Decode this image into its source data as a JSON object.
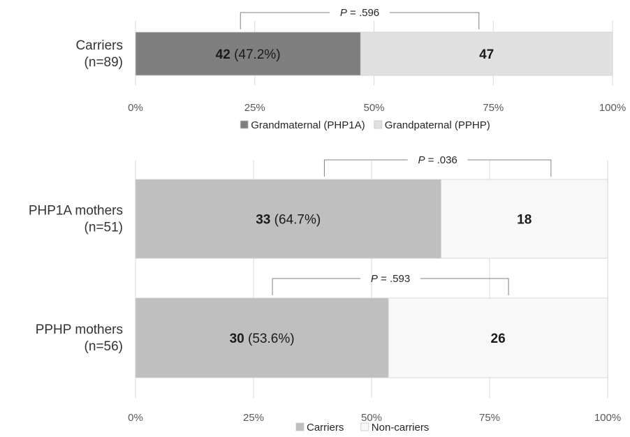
{
  "chart_data": [
    {
      "type": "bar",
      "orientation": "horizontal",
      "stacked": true,
      "percent_axis": true,
      "categories": [
        "Carriers\n(n=89)"
      ],
      "series": [
        {
          "name": "Grandmaternal (PHP1A)",
          "values": [
            42
          ],
          "percent": [
            47.2
          ],
          "color": "#7f7f7f"
        },
        {
          "name": "Grandpaternal (PPHP)",
          "values": [
            47
          ],
          "color": "#e0e0e0"
        }
      ],
      "data_labels": [
        {
          "category": 0,
          "series": 0,
          "number": "42",
          "pct": " (47.2%)"
        },
        {
          "category": 0,
          "series": 1,
          "number": "47",
          "pct": ""
        }
      ],
      "x_ticks": [
        "0%",
        "25%",
        "50%",
        "75%",
        "100%"
      ],
      "xlim": [
        0,
        100
      ],
      "grid": true,
      "legend_placement": "bottom",
      "annotations": [
        {
          "category": 0,
          "from_pct": 22,
          "to_pct": 72,
          "italic": "P",
          "text": " = .596"
        }
      ]
    },
    {
      "type": "bar",
      "orientation": "horizontal",
      "stacked": true,
      "percent_axis": true,
      "categories": [
        "PHP1A mothers\n(n=51)",
        "PPHP mothers\n(n=56)"
      ],
      "series": [
        {
          "name": "Carriers",
          "values": [
            33,
            30
          ],
          "percent": [
            64.7,
            53.6
          ],
          "color": "#bfbfbf"
        },
        {
          "name": "Non-carriers",
          "values": [
            18,
            26
          ],
          "color": "#f8f8f8"
        }
      ],
      "data_labels": [
        {
          "category": 0,
          "series": 0,
          "number": "33",
          "pct": " (64.7%)"
        },
        {
          "category": 0,
          "series": 1,
          "number": "18",
          "pct": ""
        },
        {
          "category": 1,
          "series": 0,
          "number": "30",
          "pct": " (53.6%)"
        },
        {
          "category": 1,
          "series": 1,
          "number": "26",
          "pct": ""
        }
      ],
      "x_ticks": [
        "0%",
        "25%",
        "50%",
        "75%",
        "100%"
      ],
      "xlim": [
        0,
        100
      ],
      "grid": true,
      "legend_placement": "bottom",
      "annotations": [
        {
          "category": 0,
          "from_pct": 40,
          "to_pct": 88,
          "italic": "P",
          "text": " = .036"
        },
        {
          "category": 1,
          "from_pct": 29,
          "to_pct": 79,
          "italic": "P",
          "text": " = .593"
        }
      ]
    }
  ]
}
